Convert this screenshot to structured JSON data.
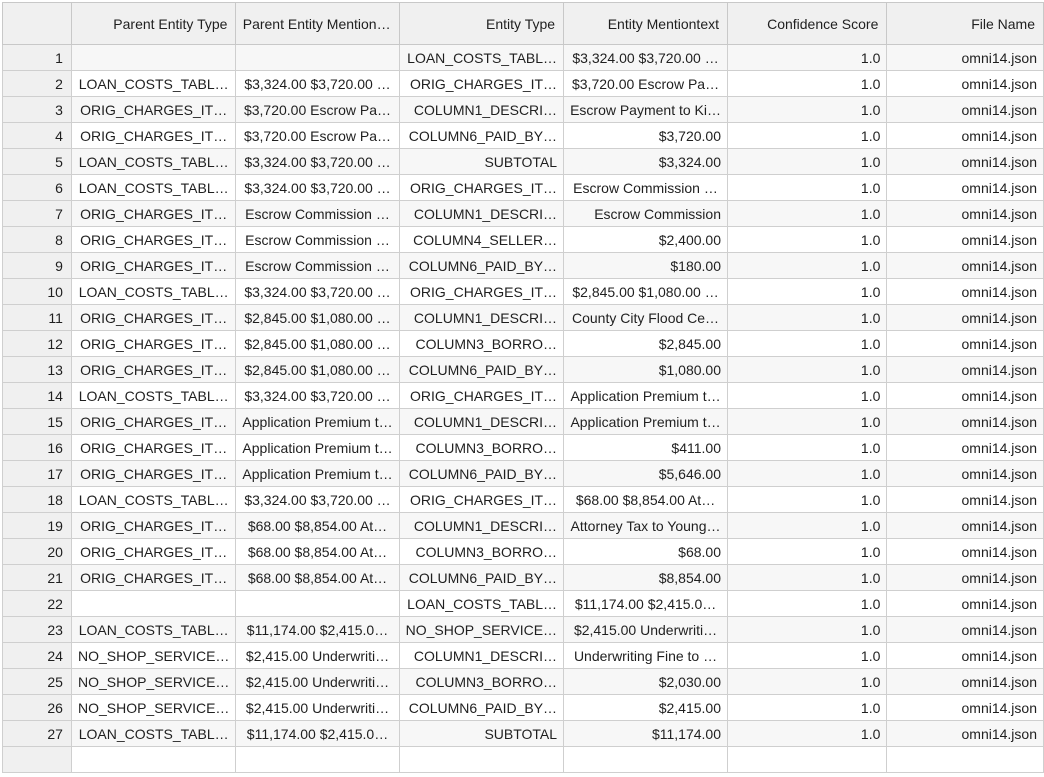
{
  "table": {
    "columns": [
      "",
      "Parent Entity Type",
      "Parent Entity Mention…",
      "Entity Type",
      "Entity Mentiontext",
      "Confidence Score",
      "File Name"
    ],
    "rows": [
      {
        "n": "1",
        "pet": "",
        "pem": "",
        "et": "LOAN_COSTS_TABL…",
        "em": "$3,324.00  $3,720.00 …",
        "cs": "1.0",
        "fn": "omni14.json"
      },
      {
        "n": "2",
        "pet": "LOAN_COSTS_TABL…",
        "pem": "$3,324.00  $3,720.00 …",
        "et": "ORIG_CHARGES_IT…",
        "em": "$3,720.00  Escrow Pa…",
        "cs": "1.0",
        "fn": "omni14.json"
      },
      {
        "n": "3",
        "pet": "ORIG_CHARGES_IT…",
        "pem": "$3,720.00  Escrow Pa…",
        "et": "COLUMN1_DESCRI…",
        "em": "Escrow Payment to Ki…",
        "cs": "1.0",
        "fn": "omni14.json"
      },
      {
        "n": "4",
        "pet": "ORIG_CHARGES_IT…",
        "pem": "$3,720.00  Escrow Pa…",
        "et": "COLUMN6_PAID_BY…",
        "em": "$3,720.00",
        "cs": "1.0",
        "fn": "omni14.json"
      },
      {
        "n": "5",
        "pet": "LOAN_COSTS_TABL…",
        "pem": "$3,324.00  $3,720.00 …",
        "et": "SUBTOTAL",
        "em": "$3,324.00",
        "cs": "1.0",
        "fn": "omni14.json"
      },
      {
        "n": "6",
        "pet": "LOAN_COSTS_TABL…",
        "pem": "$3,324.00  $3,720.00 …",
        "et": "ORIG_CHARGES_IT…",
        "em": "Escrow Commission  …",
        "cs": "1.0",
        "fn": "omni14.json"
      },
      {
        "n": "7",
        "pet": "ORIG_CHARGES_IT…",
        "pem": "Escrow Commission  …",
        "et": "COLUMN1_DESCRI…",
        "em": "Escrow Commission",
        "cs": "1.0",
        "fn": "omni14.json"
      },
      {
        "n": "8",
        "pet": "ORIG_CHARGES_IT…",
        "pem": "Escrow Commission  …",
        "et": "COLUMN4_SELLER…",
        "em": "$2,400.00",
        "cs": "1.0",
        "fn": "omni14.json"
      },
      {
        "n": "9",
        "pet": "ORIG_CHARGES_IT…",
        "pem": "Escrow Commission  …",
        "et": "COLUMN6_PAID_BY…",
        "em": "$180.00",
        "cs": "1.0",
        "fn": "omni14.json"
      },
      {
        "n": "10",
        "pet": "LOAN_COSTS_TABL…",
        "pem": "$3,324.00  $3,720.00 …",
        "et": "ORIG_CHARGES_IT…",
        "em": "$2,845.00  $1,080.00 …",
        "cs": "1.0",
        "fn": "omni14.json"
      },
      {
        "n": "11",
        "pet": "ORIG_CHARGES_IT…",
        "pem": "$2,845.00  $1,080.00 …",
        "et": "COLUMN1_DESCRI…",
        "em": "County City Flood Ce…",
        "cs": "1.0",
        "fn": "omni14.json"
      },
      {
        "n": "12",
        "pet": "ORIG_CHARGES_IT…",
        "pem": "$2,845.00  $1,080.00 …",
        "et": "COLUMN3_BORRO…",
        "em": "$2,845.00",
        "cs": "1.0",
        "fn": "omni14.json"
      },
      {
        "n": "13",
        "pet": "ORIG_CHARGES_IT…",
        "pem": "$2,845.00  $1,080.00 …",
        "et": "COLUMN6_PAID_BY…",
        "em": "$1,080.00",
        "cs": "1.0",
        "fn": "omni14.json"
      },
      {
        "n": "14",
        "pet": "LOAN_COSTS_TABL…",
        "pem": "$3,324.00  $3,720.00 …",
        "et": "ORIG_CHARGES_IT…",
        "em": "Application Premium t…",
        "cs": "1.0",
        "fn": "omni14.json"
      },
      {
        "n": "15",
        "pet": "ORIG_CHARGES_IT…",
        "pem": "Application Premium t…",
        "et": "COLUMN1_DESCRI…",
        "em": "Application Premium t…",
        "cs": "1.0",
        "fn": "omni14.json"
      },
      {
        "n": "16",
        "pet": "ORIG_CHARGES_IT…",
        "pem": "Application Premium t…",
        "et": "COLUMN3_BORRO…",
        "em": "$411.00",
        "cs": "1.0",
        "fn": "omni14.json"
      },
      {
        "n": "17",
        "pet": "ORIG_CHARGES_IT…",
        "pem": "Application Premium t…",
        "et": "COLUMN6_PAID_BY…",
        "em": "$5,646.00",
        "cs": "1.0",
        "fn": "omni14.json"
      },
      {
        "n": "18",
        "pet": "LOAN_COSTS_TABL…",
        "pem": "$3,324.00  $3,720.00 …",
        "et": "ORIG_CHARGES_IT…",
        "em": "$68.00  $8,854.00  At…",
        "cs": "1.0",
        "fn": "omni14.json"
      },
      {
        "n": "19",
        "pet": "ORIG_CHARGES_IT…",
        "pem": "$68.00  $8,854.00  At…",
        "et": "COLUMN1_DESCRI…",
        "em": "Attorney Tax to Young…",
        "cs": "1.0",
        "fn": "omni14.json"
      },
      {
        "n": "20",
        "pet": "ORIG_CHARGES_IT…",
        "pem": "$68.00  $8,854.00  At…",
        "et": "COLUMN3_BORRO…",
        "em": "$68.00",
        "cs": "1.0",
        "fn": "omni14.json"
      },
      {
        "n": "21",
        "pet": "ORIG_CHARGES_IT…",
        "pem": "$68.00  $8,854.00  At…",
        "et": "COLUMN6_PAID_BY…",
        "em": "$8,854.00",
        "cs": "1.0",
        "fn": "omni14.json"
      },
      {
        "n": "22",
        "pet": "",
        "pem": "",
        "et": "LOAN_COSTS_TABL…",
        "em": "$11,174.00  $2,415.0…",
        "cs": "1.0",
        "fn": "omni14.json"
      },
      {
        "n": "23",
        "pet": "LOAN_COSTS_TABL…",
        "pem": "$11,174.00  $2,415.0…",
        "et": "NO_SHOP_SERVICE…",
        "em": "$2,415.00  Underwriti…",
        "cs": "1.0",
        "fn": "omni14.json"
      },
      {
        "n": "24",
        "pet": "NO_SHOP_SERVICE…",
        "pem": "$2,415.00  Underwriti…",
        "et": "COLUMN1_DESCRI…",
        "em": "Underwriting Fine to …",
        "cs": "1.0",
        "fn": "omni14.json"
      },
      {
        "n": "25",
        "pet": "NO_SHOP_SERVICE…",
        "pem": "$2,415.00  Underwriti…",
        "et": "COLUMN3_BORRO…",
        "em": "$2,030.00",
        "cs": "1.0",
        "fn": "omni14.json"
      },
      {
        "n": "26",
        "pet": "NO_SHOP_SERVICE…",
        "pem": "$2,415.00  Underwriti…",
        "et": "COLUMN6_PAID_BY…",
        "em": "$2,415.00",
        "cs": "1.0",
        "fn": "omni14.json"
      },
      {
        "n": "27",
        "pet": "LOAN_COSTS_TABL…",
        "pem": "$11,174.00  $2,415.0…",
        "et": "SUBTOTAL",
        "em": "$11,174.00",
        "cs": "1.0",
        "fn": "omni14.json"
      },
      {
        "n": "",
        "pet": "",
        "pem": "",
        "et": "",
        "em": "",
        "cs": "",
        "fn": ""
      }
    ]
  }
}
